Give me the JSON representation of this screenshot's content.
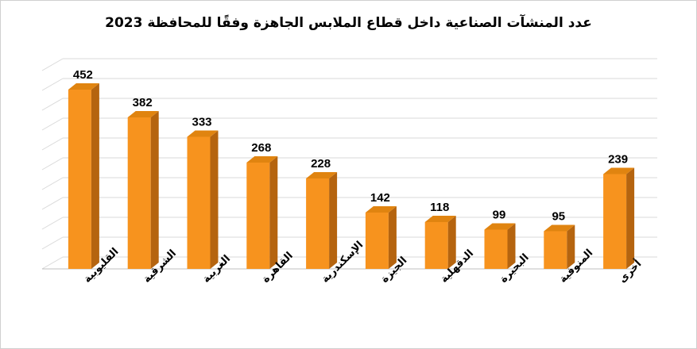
{
  "chart_data": {
    "type": "bar",
    "title": "عدد المنشآت الصناعية داخل قطاع الملابس الجاهزة وفقًا للمحافظة 2023",
    "xlabel": "",
    "ylabel": "",
    "categories": [
      "القليوبية",
      "الشرقية",
      "الغربية",
      "القاهرة",
      "الإسكندرية",
      "الجيزة",
      "الدقهلية",
      "البحيرة",
      "المنوفية",
      "أخرى"
    ],
    "values": [
      452,
      382,
      333,
      268,
      228,
      142,
      118,
      99,
      95,
      239
    ],
    "ylim": [
      0,
      500
    ],
    "gridlines": true,
    "legend": "none",
    "style": "3d-column",
    "colors": {
      "bar_front": "#F7931E",
      "bar_top": "#E08410",
      "bar_side": "#B5640F",
      "grid": "#D9D9D9",
      "axis": "#BFBFBF"
    }
  }
}
